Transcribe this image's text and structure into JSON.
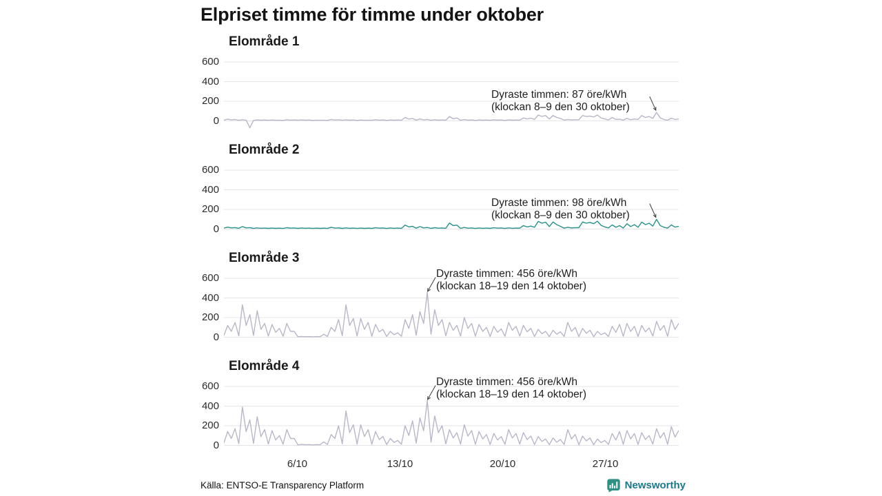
{
  "page": {
    "source": "Källa: ENTSO-E Transparency Platform",
    "brand": "Newsworthy",
    "brand_text_color": "#19798a",
    "brand_icon_color": "#2e8f82"
  },
  "chart_data": {
    "type": "line",
    "title": "Elpriset timme för timme under oktober",
    "unit": "öre/kWh",
    "x_unit": "day of October (1–31), 4 samples per day",
    "points_per_day": 4,
    "grid": true,
    "yticks": [
      600,
      400,
      200,
      0
    ],
    "ylim": [
      -100,
      650
    ],
    "xticks": [
      {
        "label": "6/10",
        "day": 6
      },
      {
        "label": "13/10",
        "day": 13
      },
      {
        "label": "20/10",
        "day": 20
      },
      {
        "label": "27/10",
        "day": 27
      }
    ],
    "grid_color": "#e4e4e8",
    "series": [
      {
        "name": "Elområde 1",
        "color": "#b7b7c7",
        "annotation": {
          "line1": "Dyraste timmen: 87 öre/kWh",
          "line2": "(klockan 8–9 den 30 oktober)",
          "peak_value": 87,
          "peak_index": 117,
          "side": "right"
        },
        "values": [
          8,
          18,
          10,
          14,
          6,
          12,
          8,
          -70,
          5,
          10,
          7,
          9,
          6,
          9,
          6,
          8,
          5,
          12,
          8,
          10,
          6,
          10,
          7,
          9,
          5,
          8,
          6,
          8,
          5,
          15,
          9,
          12,
          6,
          11,
          7,
          10,
          5,
          9,
          6,
          8,
          6,
          12,
          8,
          10,
          5,
          10,
          7,
          9,
          6,
          35,
          18,
          25,
          8,
          20,
          10,
          15,
          6,
          12,
          8,
          10,
          7,
          45,
          22,
          30,
          6,
          14,
          8,
          10,
          5,
          10,
          7,
          9,
          6,
          12,
          8,
          10,
          5,
          11,
          7,
          9,
          8,
          30,
          20,
          28,
          15,
          60,
          45,
          55,
          20,
          55,
          35,
          25,
          8,
          15,
          10,
          12,
          12,
          55,
          45,
          50,
          40,
          60,
          30,
          20,
          10,
          35,
          15,
          18,
          8,
          25,
          12,
          20,
          15,
          55,
          35,
          45,
          25,
          87,
          30,
          15,
          8,
          28,
          15,
          20
        ]
      },
      {
        "name": "Elområde 2",
        "color": "#279287",
        "annotation": {
          "line1": "Dyraste timmen: 98 öre/kWh",
          "line2": "(klockan 8–9 den 30 oktober)",
          "peak_value": 98,
          "peak_index": 117,
          "side": "right"
        },
        "values": [
          10,
          20,
          12,
          15,
          8,
          25,
          12,
          15,
          6,
          12,
          8,
          10,
          7,
          10,
          7,
          9,
          6,
          14,
          9,
          11,
          7,
          11,
          8,
          10,
          6,
          9,
          7,
          9,
          6,
          18,
          10,
          12,
          7,
          12,
          8,
          10,
          6,
          10,
          7,
          9,
          7,
          13,
          9,
          11,
          6,
          11,
          8,
          10,
          7,
          40,
          22,
          28,
          9,
          25,
          12,
          16,
          7,
          14,
          9,
          11,
          8,
          62,
          35,
          40,
          7,
          16,
          9,
          11,
          6,
          11,
          8,
          10,
          7,
          13,
          9,
          11,
          6,
          12,
          8,
          10,
          9,
          35,
          22,
          30,
          18,
          78,
          60,
          70,
          25,
          72,
          45,
          28,
          9,
          18,
          11,
          14,
          14,
          72,
          60,
          68,
          55,
          80,
          38,
          22,
          12,
          42,
          18,
          35,
          10,
          55,
          25,
          45,
          18,
          70,
          45,
          60,
          30,
          98,
          35,
          18,
          10,
          42,
          20,
          28
        ]
      },
      {
        "name": "Elområde 3",
        "color": "#b7b7c7",
        "annotation": {
          "line1": "Dyraste timmen: 456 öre/kWh",
          "line2": "(klockan 18–19 den 14 oktober)",
          "peak_value": 456,
          "peak_index": 55,
          "side": "left"
        },
        "values": [
          20,
          120,
          60,
          150,
          15,
          330,
          120,
          230,
          18,
          270,
          80,
          140,
          12,
          130,
          50,
          90,
          10,
          140,
          60,
          60,
          5,
          8,
          5,
          6,
          4,
          6,
          5,
          30,
          8,
          100,
          60,
          180,
          15,
          330,
          120,
          190,
          12,
          190,
          80,
          150,
          10,
          130,
          55,
          80,
          8,
          60,
          25,
          45,
          10,
          180,
          90,
          230,
          20,
          260,
          140,
          456,
          30,
          280,
          120,
          180,
          15,
          150,
          70,
          120,
          12,
          200,
          90,
          140,
          10,
          130,
          60,
          100,
          8,
          110,
          50,
          85,
          10,
          150,
          70,
          110,
          12,
          120,
          55,
          90,
          8,
          80,
          35,
          60,
          6,
          70,
          30,
          55,
          8,
          150,
          60,
          100,
          6,
          90,
          40,
          70,
          5,
          60,
          25,
          45,
          8,
          110,
          50,
          130,
          10,
          140,
          60,
          110,
          8,
          120,
          55,
          95,
          12,
          160,
          70,
          120,
          10,
          180,
          80,
          140
        ]
      },
      {
        "name": "Elområde 4",
        "color": "#b7b7c7",
        "annotation": {
          "line1": "Dyraste timmen: 456 öre/kWh",
          "line2": "(klockan 18–19 den 14 oktober)",
          "peak_value": 456,
          "peak_index": 55,
          "side": "left"
        },
        "values": [
          25,
          140,
          70,
          170,
          18,
          390,
          140,
          260,
          20,
          290,
          90,
          160,
          14,
          150,
          55,
          100,
          12,
          160,
          70,
          70,
          5,
          10,
          6,
          8,
          5,
          8,
          6,
          35,
          9,
          110,
          70,
          200,
          16,
          350,
          130,
          210,
          13,
          210,
          90,
          160,
          11,
          140,
          60,
          90,
          9,
          70,
          30,
          50,
          11,
          200,
          100,
          250,
          22,
          280,
          150,
          456,
          32,
          300,
          130,
          200,
          16,
          160,
          75,
          130,
          13,
          210,
          95,
          150,
          11,
          140,
          65,
          110,
          9,
          120,
          55,
          90,
          11,
          160,
          75,
          120,
          13,
          130,
          60,
          95,
          9,
          90,
          40,
          65,
          7,
          75,
          32,
          60,
          9,
          160,
          65,
          110,
          7,
          95,
          45,
          75,
          6,
          65,
          28,
          50,
          9,
          120,
          55,
          140,
          11,
          150,
          65,
          120,
          9,
          130,
          60,
          100,
          13,
          170,
          75,
          130,
          11,
          190,
          85,
          150
        ]
      }
    ]
  }
}
